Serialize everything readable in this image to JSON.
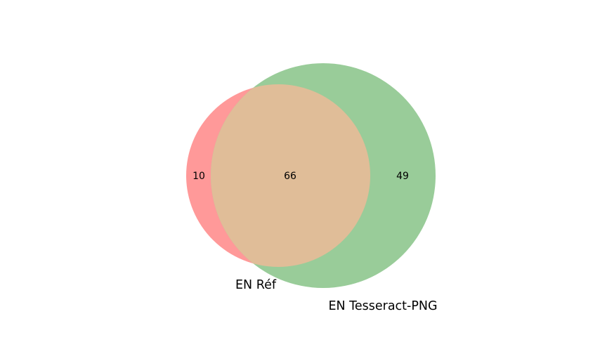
{
  "chart_data": {
    "type": "venn",
    "sets": [
      {
        "name": "EN Réf",
        "color": "#ff9999"
      },
      {
        "name": "EN Tesseract-PNG",
        "color": "#99cc99"
      }
    ],
    "intersection_color": "#e0bd98",
    "regions": {
      "only_a": "10",
      "intersection": "66",
      "only_b": "49"
    }
  }
}
